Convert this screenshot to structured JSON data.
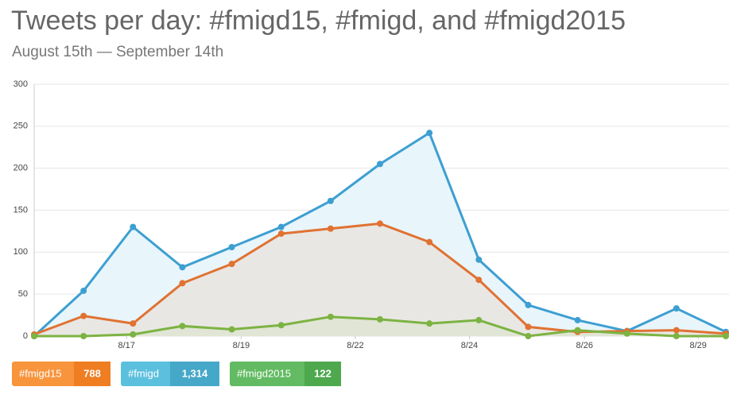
{
  "chart_data": {
    "type": "area-line",
    "title": "Tweets per day: #fmigd15, #fmigd, and #fmigd2015",
    "subtitle": "August 15th — September 14th",
    "x": [
      0,
      1,
      2,
      3,
      4,
      5,
      6,
      7,
      8,
      9,
      10,
      11,
      12,
      13,
      14
    ],
    "xlim": [
      0,
      14
    ],
    "xticks": [
      {
        "value": 1.87,
        "label": "8/17"
      },
      {
        "value": 4.19,
        "label": "8/19"
      },
      {
        "value": 6.5,
        "label": "8/22"
      },
      {
        "value": 8.81,
        "label": "8/24"
      },
      {
        "value": 11.14,
        "label": "8/26"
      },
      {
        "value": 13.44,
        "label": "8/29"
      }
    ],
    "ylim": [
      0,
      300
    ],
    "yticks": [
      0,
      50,
      100,
      150,
      200,
      250,
      300
    ],
    "grid": true,
    "series": [
      {
        "name": "#fmigd",
        "color": "#3d9fd1",
        "fill": "#e6f4fb",
        "values": [
          0,
          54,
          130,
          82,
          106,
          130,
          161,
          205,
          242,
          91,
          37,
          19,
          6,
          33,
          5
        ],
        "total": 1314,
        "total_label": "1,314",
        "badge": "#5bc0de",
        "badge_dark": "#46a8c8"
      },
      {
        "name": "#fmigd15",
        "color": "#e07232",
        "fill": "#e9e5e1",
        "values": [
          2,
          24,
          15,
          63,
          86,
          122,
          128,
          134,
          112,
          67,
          11,
          5,
          6,
          7,
          3
        ],
        "total": 788,
        "total_label": "788",
        "badge": "#f7943c",
        "badge_dark": "#ef7d22"
      },
      {
        "name": "#fmigd2015",
        "color": "#7cb342",
        "fill": "#dfe4d3",
        "values": [
          0,
          0,
          2,
          12,
          8,
          13,
          23,
          20,
          15,
          19,
          0,
          7,
          3,
          0,
          0
        ],
        "total": 122,
        "total_label": "122",
        "badge": "#62bb62",
        "badge_dark": "#4ea84e"
      }
    ],
    "legend_order": [
      1,
      0,
      2
    ]
  }
}
